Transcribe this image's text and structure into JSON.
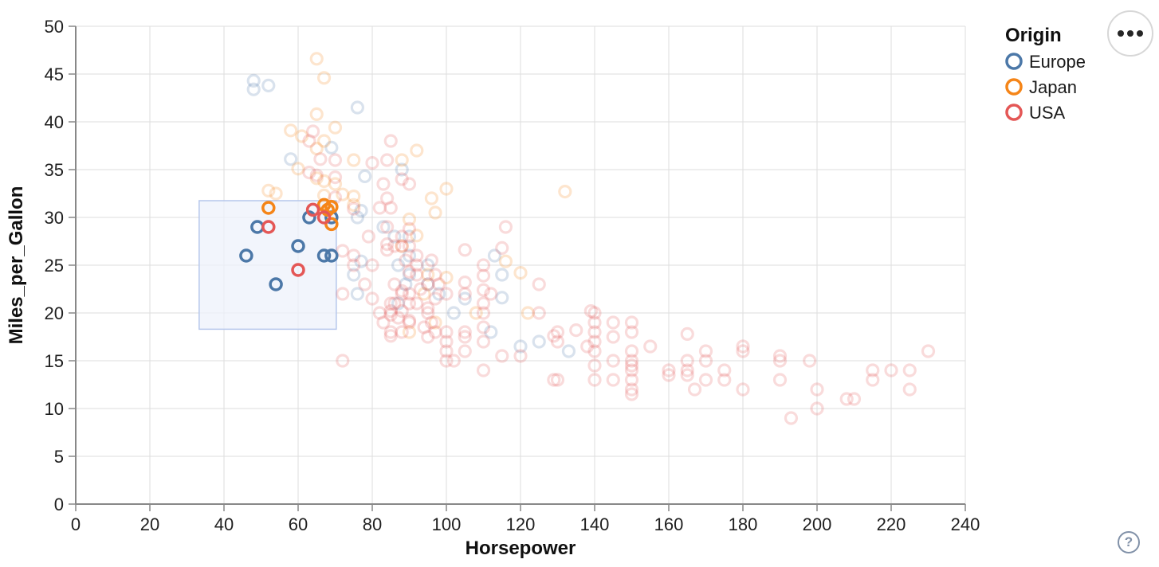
{
  "ui": {
    "help_glyph": "?"
  },
  "chart_data": {
    "type": "scatter",
    "title": "",
    "xlabel": "Horsepower",
    "ylabel": "Miles_per_Gallon",
    "xlim": [
      0,
      240
    ],
    "ylim": [
      0,
      50
    ],
    "x_ticks": [
      0,
      20,
      40,
      60,
      80,
      100,
      120,
      140,
      160,
      180,
      200,
      220,
      240
    ],
    "y_ticks": [
      0,
      5,
      10,
      15,
      20,
      25,
      30,
      35,
      40,
      45,
      50
    ],
    "grid": true,
    "legend": {
      "title": "Origin",
      "position": "top-right",
      "entries": [
        "Europe",
        "Japan",
        "USA"
      ]
    },
    "point_style": {
      "shape": "hollow-circle",
      "radius": 7,
      "stroke_width": 3.2,
      "unselected_opacity": 0.21
    },
    "brush_selection": {
      "x_range": [
        33.3,
        70.3
      ],
      "y_range": [
        18.3,
        31.75
      ],
      "fill": "#eef2fb",
      "fill_opacity": 0.75,
      "stroke": "#b5c7ec"
    },
    "series": [
      {
        "name": "Europe",
        "color": "#4c78a8",
        "selected": [
          [
            46,
            26
          ],
          [
            49,
            29
          ],
          [
            54,
            23
          ],
          [
            60,
            27
          ],
          [
            63,
            30
          ],
          [
            69,
            30
          ],
          [
            67,
            26
          ],
          [
            69,
            26
          ]
        ],
        "unselected": [
          [
            48,
            44.3
          ],
          [
            48,
            43.4
          ],
          [
            52,
            43.8
          ],
          [
            76,
            41.5
          ],
          [
            69,
            37.3
          ],
          [
            58,
            36.1
          ],
          [
            88,
            35
          ],
          [
            78,
            34.3
          ],
          [
            77,
            30.7
          ],
          [
            76,
            30
          ],
          [
            83,
            29
          ],
          [
            90,
            28
          ],
          [
            86,
            28
          ],
          [
            87,
            25
          ],
          [
            90,
            24
          ],
          [
            95,
            25
          ],
          [
            115,
            24
          ],
          [
            113,
            26
          ],
          [
            112,
            18
          ],
          [
            98,
            22
          ],
          [
            102,
            20
          ],
          [
            125,
            17
          ],
          [
            133,
            16
          ],
          [
            120,
            16.5
          ],
          [
            75,
            24
          ],
          [
            90,
            26
          ],
          [
            76,
            22
          ],
          [
            87,
            21
          ],
          [
            105,
            21.5
          ],
          [
            77,
            25.4
          ],
          [
            95,
            23
          ],
          [
            115,
            21.6
          ],
          [
            89,
            23
          ]
        ]
      },
      {
        "name": "Japan",
        "color": "#f58518",
        "selected": [
          [
            52,
            31
          ],
          [
            67,
            31.3
          ],
          [
            69,
            31.1
          ],
          [
            68,
            30.8
          ],
          [
            69,
            29.3
          ]
        ],
        "unselected": [
          [
            65,
            46.6
          ],
          [
            67,
            44.6
          ],
          [
            65,
            40.8
          ],
          [
            70,
            39.4
          ],
          [
            58,
            39.1
          ],
          [
            61,
            38.5
          ],
          [
            67,
            38
          ],
          [
            60,
            35.1
          ],
          [
            65,
            37.2
          ],
          [
            65,
            34.1
          ],
          [
            67,
            33.8
          ],
          [
            70,
            33.5
          ],
          [
            67,
            32.3
          ],
          [
            72,
            32.4
          ],
          [
            75,
            32.2
          ],
          [
            75,
            31.3
          ],
          [
            52,
            32.8
          ],
          [
            54,
            32.5
          ],
          [
            88,
            36
          ],
          [
            92,
            37
          ],
          [
            75,
            36
          ],
          [
            90,
            29.8
          ],
          [
            92,
            28.1
          ],
          [
            88,
            27
          ],
          [
            96,
            32
          ],
          [
            97,
            30.5
          ],
          [
            100,
            33
          ],
          [
            95,
            24
          ],
          [
            100,
            23.7
          ],
          [
            116,
            25.4
          ],
          [
            120,
            24.2
          ],
          [
            132,
            32.7
          ],
          [
            108,
            20
          ],
          [
            97,
            19
          ],
          [
            90,
            18
          ],
          [
            122,
            20
          ],
          [
            94,
            22
          ]
        ]
      },
      {
        "name": "USA",
        "color": "#e45756",
        "selected": [
          [
            52,
            29
          ],
          [
            60,
            24.5
          ],
          [
            64,
            30.8
          ],
          [
            67,
            30
          ]
        ],
        "unselected": [
          [
            63,
            38
          ],
          [
            64,
            39
          ],
          [
            65,
            34.4
          ],
          [
            63,
            34.7
          ],
          [
            66,
            36.1
          ],
          [
            70,
            36
          ],
          [
            70,
            34.2
          ],
          [
            85,
            38
          ],
          [
            70,
            32.1
          ],
          [
            75,
            30.9
          ],
          [
            84,
            32
          ],
          [
            84,
            29
          ],
          [
            84,
            27.2
          ],
          [
            84,
            26.6
          ],
          [
            88,
            34
          ],
          [
            88,
            28
          ],
          [
            88,
            27
          ],
          [
            85,
            31
          ],
          [
            82,
            31
          ],
          [
            79,
            28
          ],
          [
            80,
            35.7
          ],
          [
            83,
            33.5
          ],
          [
            84,
            36
          ],
          [
            90,
            33.5
          ],
          [
            90,
            28.8
          ],
          [
            90,
            27
          ],
          [
            86,
            27
          ],
          [
            92,
            26
          ],
          [
            116,
            29
          ],
          [
            105,
            26.6
          ],
          [
            115,
            26.8
          ],
          [
            110,
            25
          ],
          [
            125,
            23
          ],
          [
            110,
            23.9
          ],
          [
            105,
            23.2
          ],
          [
            96,
            25.5
          ],
          [
            92,
            25
          ],
          [
            89,
            25.5
          ],
          [
            75,
            26
          ],
          [
            72,
            26.5
          ],
          [
            80,
            25
          ],
          [
            75,
            25
          ],
          [
            92,
            24
          ],
          [
            90,
            24.3
          ],
          [
            95,
            23
          ],
          [
            86,
            23
          ],
          [
            88,
            22.3
          ],
          [
            110,
            22.4
          ],
          [
            112,
            22
          ],
          [
            88,
            22
          ],
          [
            90,
            22
          ],
          [
            72,
            22
          ],
          [
            100,
            22
          ],
          [
            105,
            22
          ],
          [
            90,
            21
          ],
          [
            86,
            21
          ],
          [
            85,
            21
          ],
          [
            110,
            21
          ],
          [
            110,
            20
          ],
          [
            95,
            20.5
          ],
          [
            95,
            20
          ],
          [
            85,
            20.2
          ],
          [
            88,
            20.2
          ],
          [
            139,
            20.2
          ],
          [
            90,
            19.2
          ],
          [
            85,
            19.8
          ],
          [
            90,
            19
          ],
          [
            100,
            18
          ],
          [
            97,
            18
          ],
          [
            85,
            18
          ],
          [
            88,
            18
          ],
          [
            105,
            18
          ],
          [
            100,
            17
          ],
          [
            105,
            17.5
          ],
          [
            110,
            18.5
          ],
          [
            95,
            17.5
          ],
          [
            85,
            17.6
          ],
          [
            110,
            17
          ],
          [
            129,
            17.6
          ],
          [
            130,
            17
          ],
          [
            138,
            16.5
          ],
          [
            135,
            18.2
          ],
          [
            125,
            20
          ],
          [
            130,
            18
          ],
          [
            78,
            23
          ],
          [
            80,
            21.5
          ],
          [
            82,
            20
          ],
          [
            92,
            21
          ],
          [
            97,
            21.5
          ],
          [
            98,
            23
          ],
          [
            94,
            18.5
          ],
          [
            96,
            19
          ],
          [
            83,
            19
          ],
          [
            87,
            19.5
          ],
          [
            93,
            22.5
          ],
          [
            97,
            24
          ],
          [
            100,
            16
          ],
          [
            105,
            16
          ],
          [
            100,
            15
          ],
          [
            102,
            15
          ],
          [
            110,
            14
          ],
          [
            120,
            15.5
          ],
          [
            115,
            15.5
          ],
          [
            72,
            15
          ],
          [
            129,
            13
          ],
          [
            130,
            13
          ],
          [
            140,
            20
          ],
          [
            140,
            19
          ],
          [
            140,
            18
          ],
          [
            140,
            17
          ],
          [
            140,
            16
          ],
          [
            140,
            14.5
          ],
          [
            140,
            13
          ],
          [
            145,
            19
          ],
          [
            145,
            17.5
          ],
          [
            145,
            15
          ],
          [
            145,
            13
          ],
          [
            150,
            19
          ],
          [
            150,
            18
          ],
          [
            150,
            16
          ],
          [
            150,
            15
          ],
          [
            150,
            14.5
          ],
          [
            150,
            14
          ],
          [
            150,
            13
          ],
          [
            150,
            12
          ],
          [
            150,
            11.5
          ],
          [
            155,
            16.5
          ],
          [
            160,
            14
          ],
          [
            160,
            13.5
          ],
          [
            165,
            17.8
          ],
          [
            165,
            15
          ],
          [
            165,
            14
          ],
          [
            165,
            13.5
          ],
          [
            167,
            12
          ],
          [
            170,
            16
          ],
          [
            170,
            15
          ],
          [
            170,
            13
          ],
          [
            175,
            14
          ],
          [
            175,
            13
          ],
          [
            180,
            16.5
          ],
          [
            180,
            16
          ],
          [
            180,
            12
          ],
          [
            190,
            15.5
          ],
          [
            190,
            15
          ],
          [
            190,
            13
          ],
          [
            193,
            9
          ],
          [
            198,
            15
          ],
          [
            200,
            12
          ],
          [
            200,
            10
          ],
          [
            208,
            11
          ],
          [
            210,
            11
          ],
          [
            215,
            14
          ],
          [
            215,
            13
          ],
          [
            220,
            14
          ],
          [
            225,
            14
          ],
          [
            225,
            12
          ],
          [
            230,
            16
          ]
        ]
      }
    ]
  }
}
